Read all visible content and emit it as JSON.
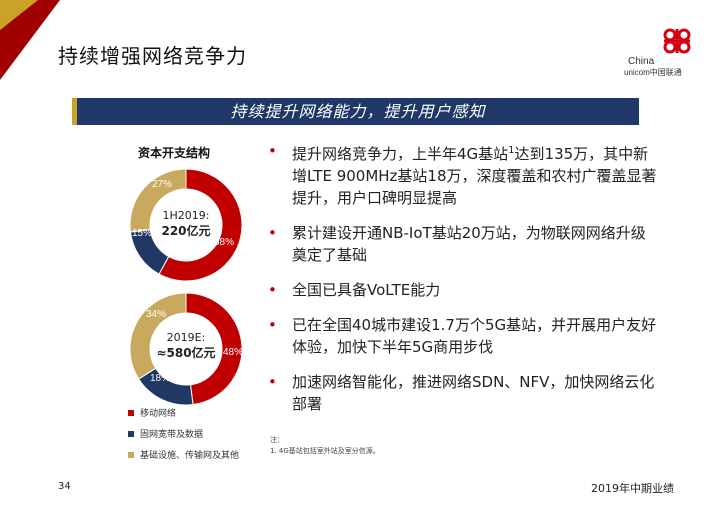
{
  "header": {
    "title": "持续增强网络竞争力",
    "banner": "持续提升网络能力，提升用户感知"
  },
  "logo": {
    "line1": "China",
    "line2": "unicom中国联通"
  },
  "charts": {
    "title": "资本开支结构",
    "colors": {
      "mobile": "#c00000",
      "fixed": "#203864",
      "infra": "#c9a95d"
    },
    "chart_data": [
      {
        "type": "pie",
        "title": "1H2019:",
        "center_value": "220亿元",
        "categories": [
          "移动网络",
          "固网宽带及数据",
          "基础设施、传输网及其他"
        ],
        "values": [
          58,
          15,
          27
        ],
        "labels": [
          "58%",
          "15%",
          "27%"
        ]
      },
      {
        "type": "pie",
        "title": "2019E:",
        "center_value": "≈580亿元",
        "categories": [
          "移动网络",
          "固网宽带及数据",
          "基础设施、传输网及其他"
        ],
        "values": [
          48,
          18,
          34
        ],
        "labels": [
          "48%",
          "18%",
          "34%"
        ]
      }
    ],
    "legend": [
      "移动网络",
      "固网宽带及数据",
      "基础设施、传输网及其他"
    ]
  },
  "bullets": [
    {
      "pre": "提升网络竞争力，上半年4G基站",
      "sup": "1",
      "post": "达到135万，其中新增LTE 900MHz基站18万，深度覆盖和农村广覆盖显著提升，用户口碑明显提高"
    },
    {
      "text": "累计建设开通NB-IoT基站20万站，为物联网网络升级奠定了基础"
    },
    {
      "text": "全国已具备VoLTE能力"
    },
    {
      "text": "已在全国40城市建设1.7万个5G基站，并开展用户友好体验，加快下半年5G商用步伐"
    },
    {
      "text": "加速网络智能化，推进网络SDN、NFV，加快网络云化部署"
    }
  ],
  "note": {
    "label": "注：",
    "item": "1.    4G基站包括室外站及室分信源。"
  },
  "footer": {
    "page": "34",
    "right": "2019年中期业绩"
  }
}
